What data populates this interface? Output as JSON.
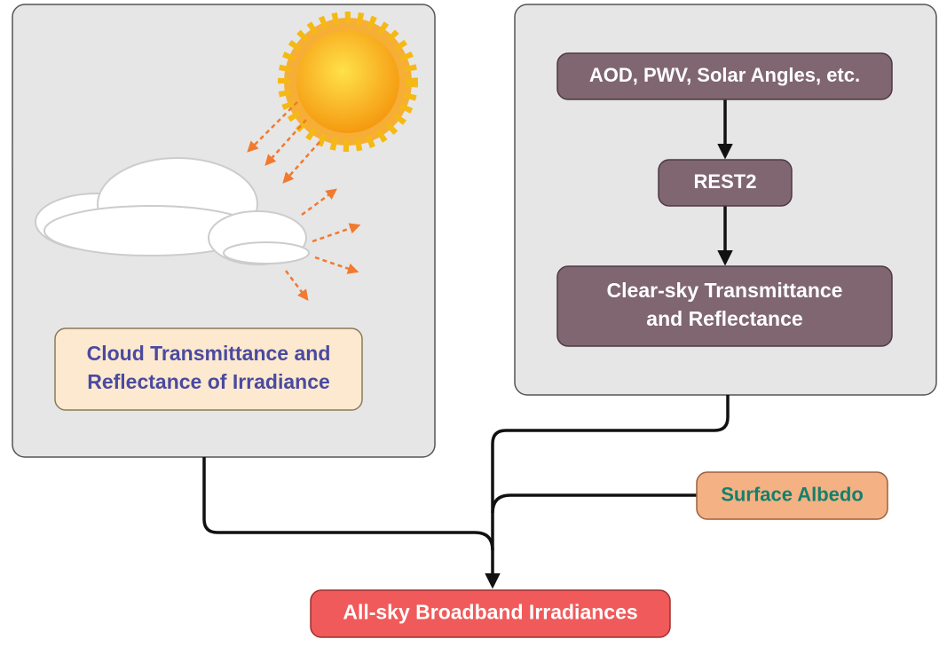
{
  "cloud_box": {
    "lines": [
      "Cloud Transmittance and",
      "Reflectance of Irradiance"
    ]
  },
  "inputs": {
    "lines": [
      "AOD, PWV, Solar Angles, etc."
    ]
  },
  "model": {
    "lines": [
      "REST2"
    ]
  },
  "clear_sky": {
    "lines": [
      "Clear-sky Transmittance",
      "and Reflectance"
    ]
  },
  "albedo": {
    "lines": [
      "Surface Albedo"
    ]
  },
  "output": {
    "lines": [
      "All-sky Broadband Irradiances"
    ]
  }
}
